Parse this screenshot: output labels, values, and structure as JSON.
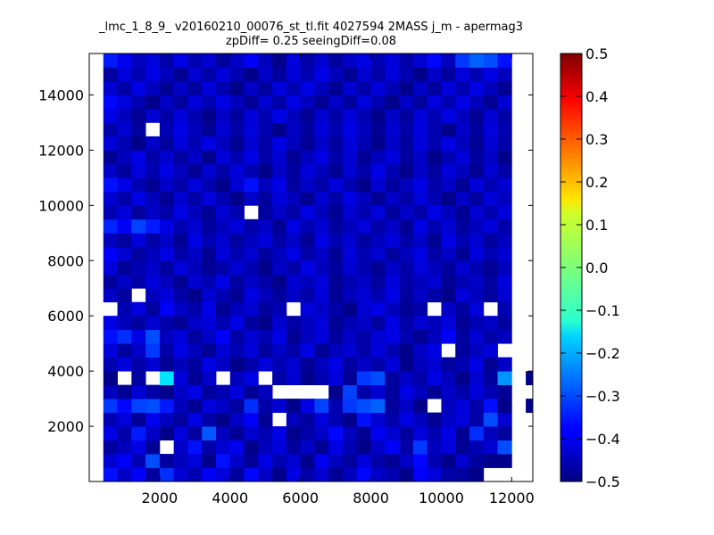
{
  "chart_data": {
    "type": "heatmap",
    "title": "_lmc_1_8_9_ v20160210_00076_st_tl.fit 4027594 2MASS j_m - apermag3",
    "subtitle": "zpDiff= 0.25 seeingDiff=0.08",
    "xlabel": "",
    "ylabel": "",
    "xlim": [
      0,
      12600
    ],
    "ylim": [
      0,
      15500
    ],
    "x_ticks": [
      2000,
      4000,
      6000,
      8000,
      10000,
      12000
    ],
    "y_ticks": [
      2000,
      4000,
      6000,
      8000,
      10000,
      12000,
      14000
    ],
    "x_tick_labels": [
      "2000",
      "4000",
      "6000",
      "8000",
      "10000",
      "12000"
    ],
    "y_tick_labels": [
      "2000",
      "4000",
      "6000",
      "8000",
      "10000",
      "12000",
      "14000"
    ],
    "cell_size": [
      400,
      500
    ],
    "x_start": 800,
    "y_start": 0,
    "colorbar": {
      "colormap": "jet",
      "vmin": -0.5,
      "vmax": 0.5,
      "ticks": [
        -0.5,
        -0.4,
        -0.3,
        -0.2,
        -0.1,
        0.0,
        0.1,
        0.2,
        0.3,
        0.4,
        0.5
      ],
      "tick_labels": [
        "−0.5",
        "−0.4",
        "−0.3",
        "−0.2",
        "−0.1",
        "0.0",
        "0.1",
        "0.2",
        "0.3",
        "0.4",
        "0.5"
      ]
    },
    "grid": false,
    "values": [
      [
        -0.36,
        -0.43,
        -0.38,
        -0.47,
        -0.33,
        -0.42,
        -0.45,
        -0.38,
        -0.41,
        -0.47,
        -0.37,
        -0.43,
        -0.49,
        -0.4,
        -0.46,
        -0.42,
        -0.48,
        -0.44,
        -0.37,
        -0.43,
        -0.45,
        -0.49,
        -0.38,
        -0.41,
        -0.46,
        -0.47,
        -0.49,
        null,
        null,
        null,
        null
      ],
      [
        -0.42,
        -0.38,
        -0.45,
        -0.3,
        -0.47,
        -0.44,
        -0.41,
        -0.49,
        -0.36,
        -0.43,
        -0.48,
        -0.4,
        -0.45,
        -0.42,
        -0.49,
        -0.39,
        -0.44,
        -0.47,
        -0.41,
        -0.46,
        -0.48,
        -0.43,
        -0.37,
        -0.45,
        -0.49,
        -0.42,
        -0.47,
        -0.49,
        -0.49,
        null,
        null
      ],
      [
        -0.47,
        -0.44,
        -0.4,
        -0.48,
        null,
        -0.43,
        -0.36,
        -0.46,
        -0.42,
        -0.39,
        -0.49,
        -0.44,
        -0.41,
        -0.47,
        -0.43,
        -0.48,
        -0.4,
        -0.45,
        -0.49,
        -0.43,
        -0.38,
        -0.46,
        -0.32,
        -0.44,
        -0.41,
        -0.48,
        -0.45,
        -0.42,
        -0.3,
        null,
        null
      ],
      [
        -0.4,
        -0.46,
        -0.35,
        -0.43,
        -0.49,
        -0.41,
        -0.47,
        -0.29,
        -0.44,
        -0.48,
        -0.42,
        -0.45,
        -0.4,
        -0.49,
        -0.46,
        -0.43,
        -0.37,
        -0.44,
        -0.48,
        -0.39,
        -0.42,
        -0.47,
        -0.41,
        -0.45,
        -0.4,
        -0.48,
        -0.33,
        -0.44,
        -0.47,
        null,
        null
      ],
      [
        -0.45,
        -0.41,
        -0.48,
        -0.39,
        -0.44,
        -0.47,
        -0.4,
        -0.46,
        -0.49,
        -0.43,
        -0.38,
        -0.48,
        null,
        -0.44,
        -0.47,
        -0.41,
        -0.45,
        -0.49,
        -0.36,
        -0.42,
        -0.46,
        -0.4,
        -0.44,
        -0.48,
        -0.43,
        -0.41,
        -0.46,
        -0.3,
        -0.42,
        null,
        null
      ],
      [
        -0.32,
        -0.37,
        -0.31,
        -0.3,
        -0.35,
        -0.44,
        -0.48,
        -0.41,
        -0.43,
        -0.47,
        -0.33,
        -0.46,
        -0.42,
        -0.49,
        -0.4,
        -0.31,
        -0.45,
        -0.32,
        -0.3,
        -0.28,
        -0.47,
        -0.43,
        -0.49,
        null,
        -0.44,
        -0.41,
        -0.46,
        -0.36,
        -0.49,
        null,
        -0.49
      ],
      [
        -0.44,
        -0.48,
        -0.42,
        -0.46,
        -0.49,
        -0.43,
        -0.4,
        -0.47,
        -0.45,
        -0.41,
        -0.48,
        -0.44,
        null,
        null,
        null,
        null,
        -0.49,
        -0.31,
        -0.46,
        -0.42,
        -0.47,
        -0.4,
        -0.44,
        -0.48,
        -0.43,
        -0.46,
        -0.41,
        -0.45,
        -0.48,
        null,
        null
      ],
      [
        -0.49,
        null,
        -0.47,
        null,
        -0.15,
        -0.41,
        -0.48,
        -0.43,
        null,
        -0.44,
        -0.4,
        null,
        -0.46,
        -0.42,
        -0.49,
        -0.45,
        -0.41,
        -0.48,
        -0.32,
        -0.3,
        -0.47,
        -0.43,
        -0.46,
        -0.4,
        -0.44,
        -0.49,
        -0.42,
        -0.47,
        -0.23,
        null,
        -0.49
      ],
      [
        -0.45,
        -0.41,
        -0.46,
        -0.42,
        -0.48,
        -0.44,
        -0.47,
        -0.4,
        -0.43,
        -0.49,
        -0.46,
        -0.41,
        -0.45,
        -0.42,
        -0.48,
        -0.44,
        -0.4,
        -0.47,
        -0.43,
        -0.46,
        -0.41,
        -0.49,
        -0.44,
        -0.42,
        -0.47,
        -0.45,
        -0.4,
        -0.48,
        -0.43,
        null,
        null
      ],
      [
        -0.41,
        -0.47,
        -0.43,
        -0.32,
        -0.46,
        -0.4,
        -0.44,
        -0.48,
        -0.42,
        -0.45,
        -0.41,
        -0.47,
        -0.43,
        -0.46,
        -0.4,
        -0.48,
        -0.44,
        -0.42,
        -0.46,
        -0.41,
        -0.45,
        -0.49,
        -0.43,
        -0.4,
        null,
        -0.47,
        -0.44,
        -0.41,
        null,
        null,
        null
      ],
      [
        -0.36,
        -0.33,
        -0.4,
        -0.3,
        -0.44,
        -0.41,
        -0.47,
        -0.43,
        -0.38,
        -0.46,
        -0.42,
        -0.45,
        -0.4,
        -0.48,
        -0.44,
        -0.41,
        -0.47,
        -0.43,
        -0.46,
        -0.42,
        -0.4,
        -0.45,
        -0.48,
        -0.44,
        -0.38,
        -0.47,
        -0.42,
        -0.46,
        -0.44,
        null,
        null
      ],
      [
        -0.4,
        -0.44,
        -0.47,
        -0.42,
        -0.46,
        -0.48,
        -0.43,
        -0.41,
        -0.45,
        -0.4,
        -0.47,
        -0.49,
        -0.42,
        -0.46,
        -0.44,
        -0.41,
        -0.48,
        -0.45,
        -0.43,
        -0.47,
        -0.4,
        -0.46,
        -0.42,
        -0.44,
        -0.41,
        -0.48,
        -0.45,
        -0.43,
        -0.47,
        null,
        null
      ],
      [
        null,
        -0.45,
        -0.41,
        -0.47,
        -0.38,
        -0.43,
        -0.46,
        -0.4,
        -0.48,
        -0.44,
        -0.42,
        -0.47,
        -0.45,
        null,
        -0.41,
        -0.43,
        -0.46,
        -0.49,
        -0.42,
        -0.4,
        -0.44,
        -0.48,
        -0.46,
        null,
        -0.43,
        -0.47,
        -0.41,
        null,
        -0.45,
        null,
        null
      ],
      [
        -0.43,
        -0.47,
        null,
        -0.44,
        -0.41,
        -0.46,
        -0.49,
        -0.42,
        -0.45,
        -0.48,
        -0.4,
        -0.44,
        -0.47,
        -0.43,
        -0.46,
        -0.41,
        -0.48,
        -0.44,
        -0.42,
        -0.45,
        -0.4,
        -0.47,
        -0.43,
        -0.46,
        -0.49,
        -0.41,
        -0.44,
        -0.47,
        -0.42,
        null,
        null
      ],
      [
        -0.47,
        -0.43,
        -0.46,
        -0.41,
        -0.44,
        -0.48,
        -0.42,
        -0.45,
        -0.4,
        -0.47,
        -0.43,
        -0.46,
        -0.49,
        -0.42,
        -0.44,
        -0.41,
        -0.48,
        -0.45,
        -0.43,
        -0.47,
        -0.41,
        -0.46,
        -0.44,
        -0.42,
        -0.48,
        -0.45,
        -0.43,
        -0.47,
        -0.41,
        null,
        null
      ],
      [
        -0.41,
        -0.48,
        -0.45,
        -0.43,
        -0.47,
        -0.41,
        -0.44,
        -0.48,
        -0.46,
        -0.42,
        -0.45,
        -0.49,
        -0.43,
        -0.46,
        -0.4,
        -0.44,
        -0.47,
        -0.42,
        -0.45,
        -0.48,
        -0.43,
        -0.46,
        -0.41,
        -0.44,
        -0.47,
        -0.42,
        -0.45,
        -0.48,
        -0.44,
        null,
        null
      ],
      [
        -0.38,
        -0.42,
        -0.47,
        -0.44,
        -0.4,
        -0.46,
        -0.43,
        -0.48,
        -0.41,
        -0.45,
        -0.42,
        -0.47,
        -0.44,
        -0.4,
        -0.46,
        -0.43,
        -0.48,
        -0.41,
        -0.45,
        -0.42,
        -0.47,
        -0.44,
        -0.4,
        -0.46,
        -0.43,
        -0.48,
        -0.41,
        -0.45,
        -0.42,
        null,
        null
      ],
      [
        -0.44,
        -0.47,
        -0.41,
        -0.46,
        -0.43,
        -0.48,
        -0.4,
        -0.45,
        -0.42,
        -0.47,
        -0.44,
        -0.41,
        -0.46,
        -0.43,
        -0.48,
        -0.4,
        -0.45,
        -0.42,
        -0.47,
        -0.44,
        -0.41,
        -0.46,
        -0.43,
        -0.48,
        -0.4,
        -0.45,
        -0.42,
        -0.47,
        -0.44,
        null,
        null
      ],
      [
        -0.34,
        -0.38,
        -0.31,
        -0.35,
        -0.4,
        -0.45,
        -0.42,
        -0.47,
        -0.44,
        -0.41,
        -0.46,
        -0.43,
        -0.48,
        -0.4,
        -0.45,
        -0.42,
        -0.47,
        -0.44,
        -0.41,
        -0.46,
        -0.43,
        -0.48,
        -0.4,
        -0.45,
        -0.42,
        -0.47,
        -0.44,
        -0.41,
        -0.46,
        null,
        null
      ],
      [
        -0.45,
        -0.41,
        -0.47,
        -0.43,
        -0.46,
        -0.4,
        -0.44,
        -0.48,
        -0.42,
        -0.45,
        null,
        -0.47,
        -0.43,
        -0.46,
        -0.4,
        -0.44,
        -0.48,
        -0.42,
        -0.45,
        -0.41,
        -0.47,
        -0.43,
        -0.46,
        -0.4,
        -0.44,
        -0.48,
        -0.42,
        -0.45,
        -0.41,
        null,
        null
      ],
      [
        -0.42,
        -0.46,
        -0.4,
        -0.44,
        -0.48,
        -0.42,
        -0.46,
        -0.41,
        -0.45,
        -0.49,
        -0.43,
        -0.47,
        -0.41,
        -0.44,
        -0.48,
        -0.42,
        -0.46,
        -0.4,
        -0.44,
        -0.48,
        -0.43,
        -0.46,
        -0.41,
        -0.45,
        -0.49,
        -0.43,
        -0.47,
        -0.41,
        -0.44,
        null,
        null
      ],
      [
        -0.36,
        -0.4,
        -0.45,
        -0.48,
        -0.43,
        -0.46,
        -0.41,
        -0.45,
        -0.49,
        -0.42,
        -0.36,
        -0.44,
        -0.4,
        -0.47,
        -0.43,
        -0.46,
        -0.41,
        -0.45,
        -0.49,
        -0.42,
        -0.47,
        -0.44,
        -0.4,
        -0.46,
        -0.43,
        -0.48,
        -0.41,
        -0.45,
        -0.42,
        null,
        null
      ],
      [
        -0.43,
        -0.47,
        -0.41,
        -0.45,
        -0.4,
        -0.44,
        -0.48,
        -0.42,
        -0.46,
        -0.41,
        -0.45,
        -0.49,
        -0.43,
        -0.47,
        -0.41,
        -0.44,
        -0.48,
        -0.42,
        -0.46,
        -0.4,
        -0.45,
        -0.49,
        -0.43,
        -0.47,
        -0.41,
        -0.44,
        -0.48,
        -0.42,
        -0.46,
        null,
        null
      ],
      [
        -0.48,
        -0.44,
        -0.4,
        -0.46,
        -0.42,
        -0.47,
        -0.43,
        -0.49,
        -0.41,
        -0.45,
        -0.4,
        -0.46,
        -0.42,
        -0.48,
        -0.44,
        -0.4,
        -0.46,
        -0.42,
        -0.48,
        -0.44,
        -0.41,
        -0.47,
        -0.43,
        -0.49,
        -0.45,
        -0.41,
        -0.47,
        -0.43,
        -0.49,
        null,
        null
      ],
      [
        -0.41,
        -0.45,
        -0.49,
        -0.43,
        -0.47,
        -0.41,
        -0.45,
        -0.4,
        -0.44,
        -0.48,
        -0.42,
        -0.46,
        -0.4,
        -0.44,
        -0.48,
        -0.43,
        -0.47,
        -0.41,
        -0.45,
        -0.49,
        -0.43,
        -0.47,
        -0.41,
        -0.45,
        -0.4,
        -0.44,
        -0.48,
        -0.42,
        -0.46,
        null,
        null
      ],
      [
        -0.46,
        -0.42,
        -0.47,
        null,
        -0.45,
        -0.4,
        -0.44,
        -0.48,
        -0.42,
        -0.46,
        -0.41,
        -0.45,
        -0.49,
        -0.43,
        -0.47,
        -0.41,
        -0.45,
        -0.4,
        -0.44,
        -0.48,
        -0.42,
        -0.46,
        -0.41,
        -0.45,
        -0.49,
        -0.43,
        -0.47,
        -0.41,
        -0.45,
        null,
        null
      ],
      [
        -0.4,
        -0.44,
        -0.48,
        -0.42,
        -0.46,
        -0.41,
        -0.45,
        -0.49,
        -0.43,
        -0.47,
        -0.41,
        -0.45,
        -0.4,
        -0.44,
        -0.48,
        -0.42,
        -0.46,
        -0.41,
        -0.45,
        -0.49,
        -0.43,
        -0.47,
        -0.41,
        -0.45,
        -0.4,
        -0.44,
        -0.48,
        -0.42,
        -0.46,
        null,
        null
      ],
      [
        -0.37,
        -0.41,
        -0.45,
        -0.49,
        -0.43,
        -0.47,
        -0.41,
        -0.45,
        -0.4,
        -0.44,
        -0.48,
        -0.42,
        -0.46,
        -0.4,
        -0.44,
        -0.48,
        -0.43,
        -0.47,
        -0.41,
        -0.45,
        -0.49,
        -0.43,
        -0.47,
        -0.41,
        -0.45,
        -0.4,
        -0.44,
        -0.48,
        -0.42,
        null,
        null
      ],
      [
        -0.42,
        -0.46,
        -0.4,
        -0.44,
        -0.48,
        -0.43,
        -0.47,
        -0.41,
        -0.45,
        -0.49,
        -0.43,
        -0.47,
        -0.41,
        -0.45,
        -0.4,
        -0.44,
        -0.48,
        -0.42,
        -0.46,
        -0.41,
        -0.45,
        -0.49,
        -0.43,
        -0.47,
        -0.41,
        -0.45,
        -0.4,
        -0.44,
        -0.48,
        null,
        null
      ],
      [
        -0.47,
        -0.41,
        -0.45,
        -0.4,
        -0.44,
        -0.48,
        -0.42,
        -0.46,
        -0.41,
        -0.45,
        -0.49,
        -0.43,
        -0.47,
        -0.41,
        -0.45,
        -0.4,
        -0.44,
        -0.48,
        -0.42,
        -0.46,
        -0.41,
        -0.45,
        -0.49,
        -0.43,
        -0.47,
        -0.41,
        -0.45,
        -0.4,
        -0.44,
        null,
        null
      ],
      [
        -0.35,
        -0.39,
        -0.44,
        -0.41,
        -0.46,
        -0.4,
        -0.45,
        -0.42,
        -0.47,
        -0.43,
        -0.38,
        -0.44,
        -0.49,
        -0.41,
        -0.46,
        -0.42,
        -0.47,
        -0.43,
        -0.4,
        -0.45,
        -0.41,
        -0.46,
        -0.42,
        -0.37,
        -0.44,
        -0.32,
        -0.28,
        -0.3,
        -0.36,
        null,
        null
      ]
    ]
  }
}
